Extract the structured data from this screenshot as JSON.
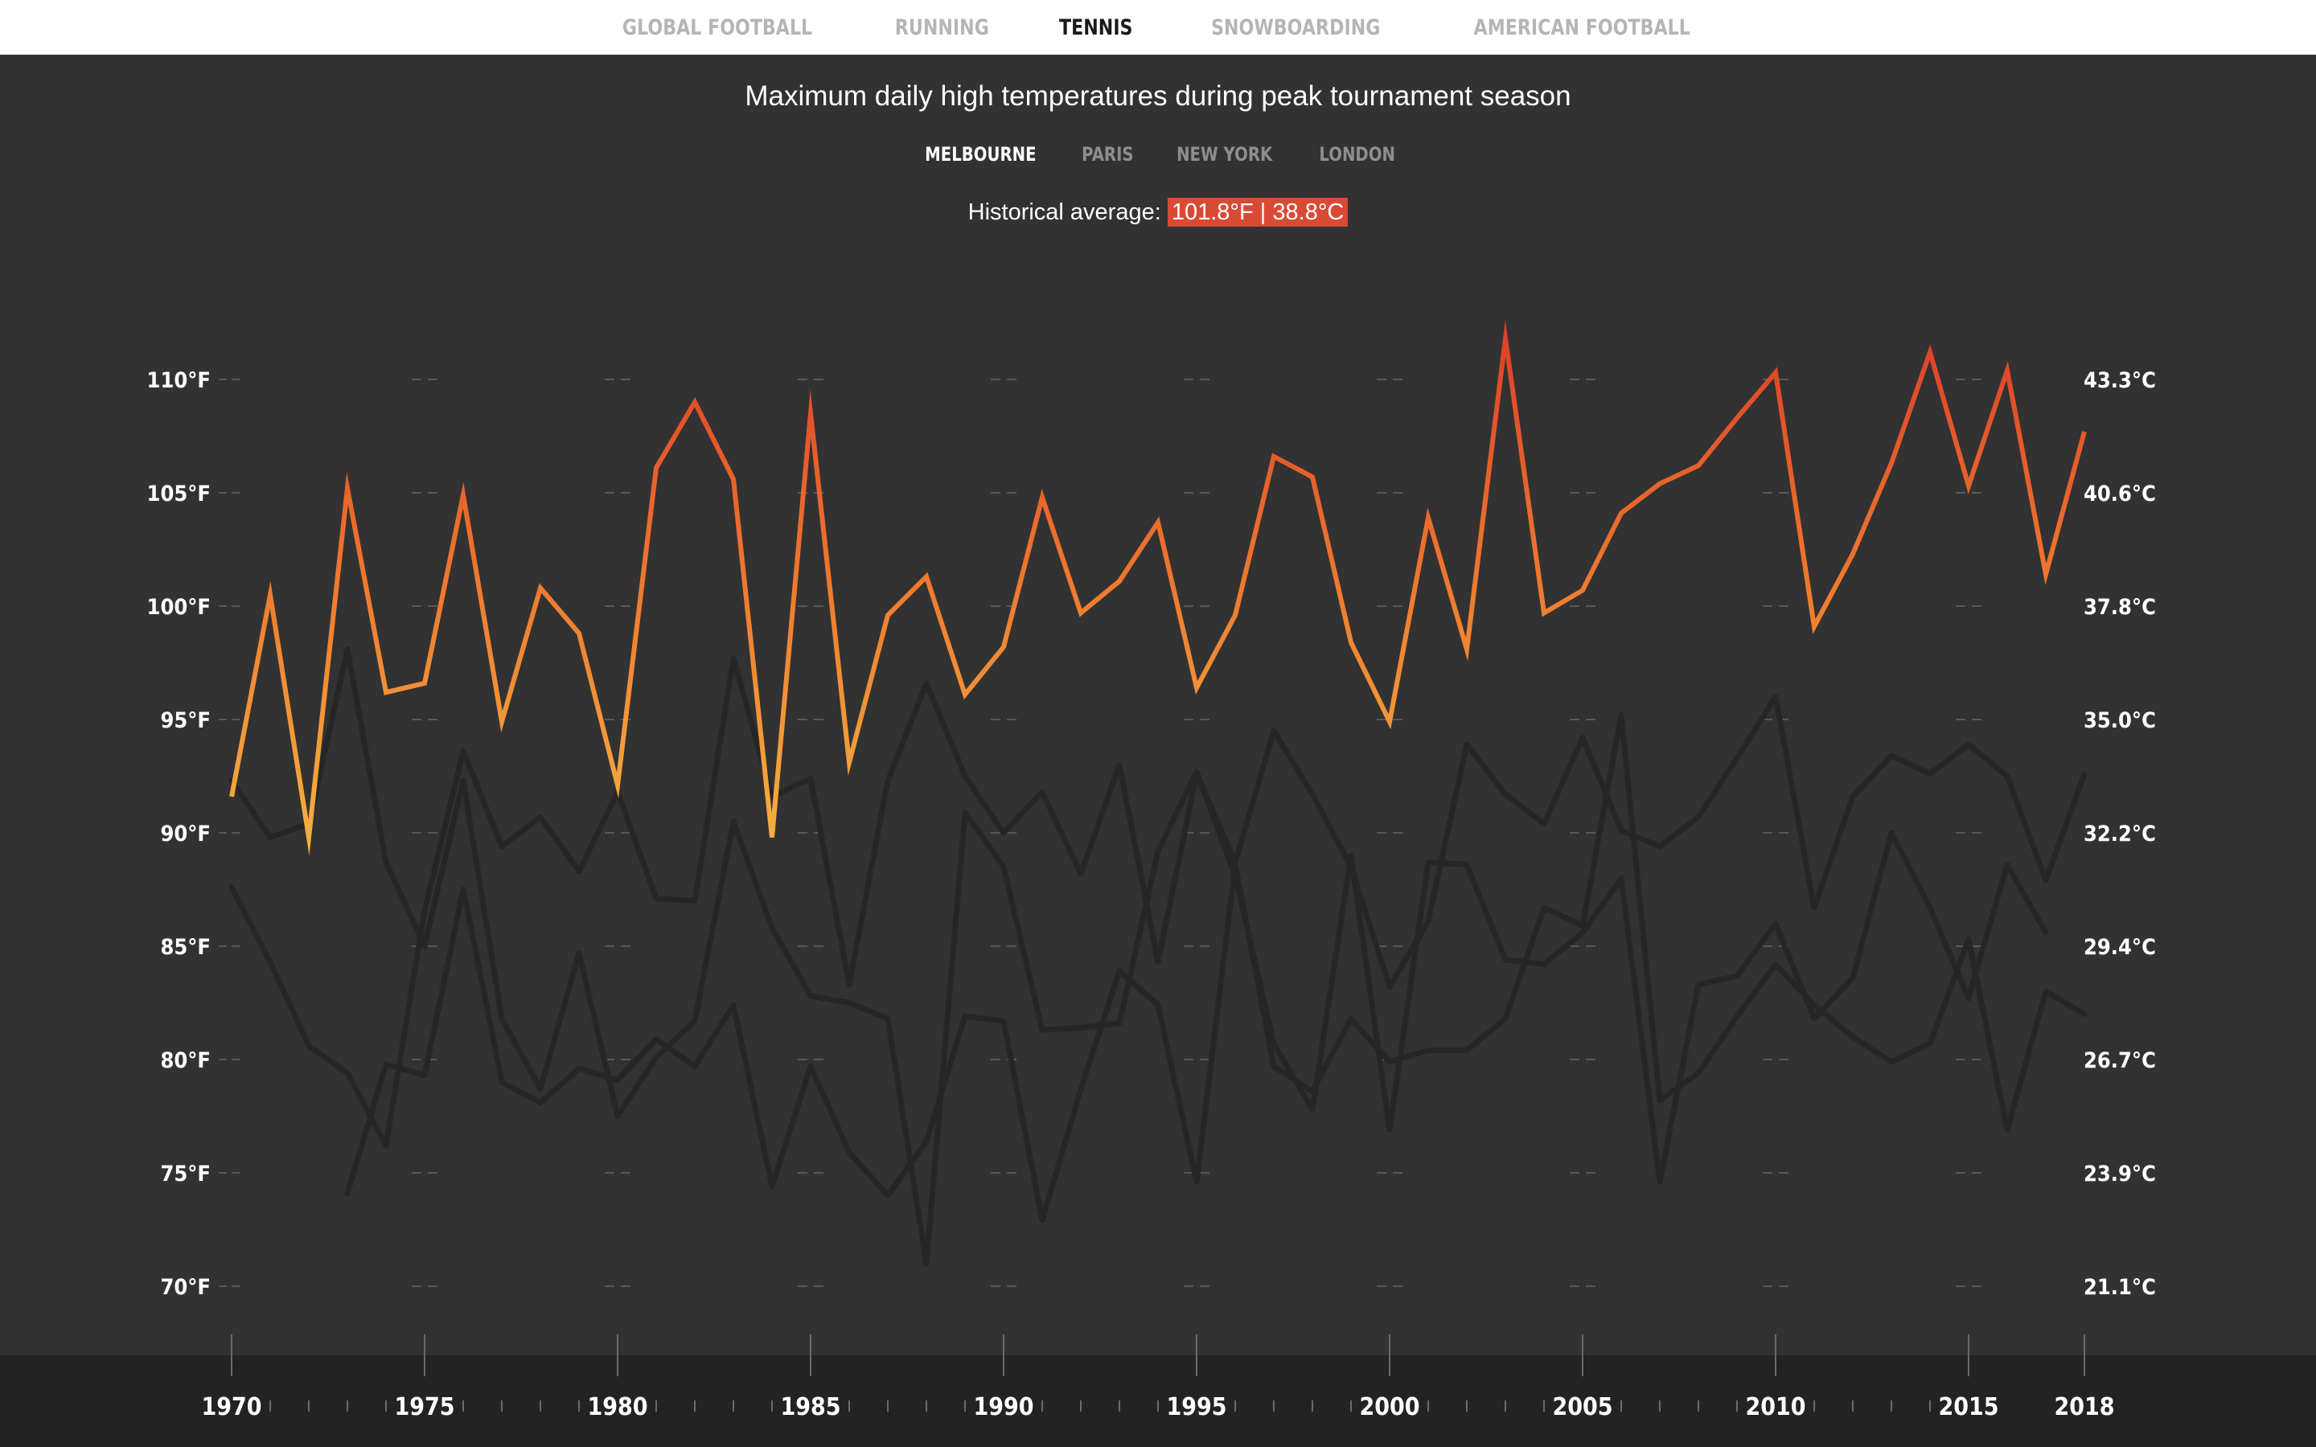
{
  "nav": {
    "tabs": [
      {
        "label": "GLOBAL FOOTBALL",
        "active": false
      },
      {
        "label": "RUNNING",
        "active": false
      },
      {
        "label": "TENNIS",
        "active": true
      },
      {
        "label": "SNOWBOARDING",
        "active": false
      },
      {
        "label": "AMERICAN FOOTBALL",
        "active": false
      }
    ]
  },
  "chart_title": "Maximum daily high temperatures during peak tournament season",
  "cities": [
    {
      "label": "MELBOURNE",
      "active": true
    },
    {
      "label": "PARIS",
      "active": false
    },
    {
      "label": "NEW YORK",
      "active": false
    },
    {
      "label": "LONDON",
      "active": false
    }
  ],
  "average": {
    "label": "Historical average:",
    "value": "101.8°F | 38.8°C"
  },
  "colors": {
    "highlight_low": "#f5b041",
    "highlight_mid": "#ef7b2f",
    "highlight_high": "#de4128",
    "background_series": "#262626",
    "badge": "#d94a35"
  },
  "chart_data": {
    "type": "line",
    "title": "Maximum daily high temperatures during peak tournament season",
    "xlabel": "",
    "ylabel": "",
    "xlim": [
      1970,
      2018
    ],
    "ylim": [
      67,
      115
    ],
    "y_ticks_f": [
      "110°F",
      "105°F",
      "100°F",
      "95°F",
      "90°F",
      "85°F",
      "80°F",
      "75°F",
      "70°F"
    ],
    "y_ticks_c": [
      "43.3°C",
      "40.6°C",
      "37.8°C",
      "35.0°C",
      "32.2°C",
      "29.4°C",
      "26.7°C",
      "23.9°C",
      "21.1°C"
    ],
    "y_tick_values": [
      110,
      105,
      100,
      95,
      90,
      85,
      80,
      75,
      70
    ],
    "x_tick_labels": [
      "1970",
      "1975",
      "1980",
      "1985",
      "1990",
      "1995",
      "2000",
      "2005",
      "2010",
      "2015",
      "2018"
    ],
    "x_tick_values": [
      1970,
      1975,
      1980,
      1985,
      1990,
      1995,
      2000,
      2005,
      2010,
      2015,
      2018
    ],
    "grid": "dashed horizontal",
    "highlight_series": "MELBOURNE",
    "series": [
      {
        "name": "MELBOURNE",
        "start_year": 1970,
        "values": [
          91.6,
          100.5,
          89.8,
          105.2,
          96.2,
          96.6,
          104.9,
          94.9,
          100.8,
          98.8,
          92.1,
          106.1,
          109.0,
          105.6,
          89.8,
          108.5,
          93.1,
          99.6,
          101.3,
          96.1,
          98.2,
          104.8,
          99.7,
          101.1,
          103.7,
          96.4,
          99.6,
          106.6,
          105.7,
          98.4,
          94.9,
          103.9,
          98.1,
          111.8,
          99.7,
          100.7,
          104.1,
          105.4,
          106.2,
          108.3,
          110.3,
          99.1,
          102.3,
          106.3,
          111.2,
          105.3,
          110.4,
          101.4,
          107.7
        ]
      },
      {
        "name": "PARIS",
        "start_year": 1970,
        "values": [
          87.6,
          84.3,
          80.6,
          79.4,
          76.2,
          86.6,
          93.6,
          89.4,
          90.7,
          88.3,
          91.8,
          87.1,
          87.0,
          97.7,
          91.6,
          92.4,
          83.3,
          92.3,
          96.6,
          92.5,
          90.0,
          91.8,
          88.2,
          93.0,
          84.3,
          92.6,
          88.7,
          94.5,
          91.7,
          88.5,
          83.2,
          86.1,
          93.9,
          91.7,
          90.4,
          94.2,
          90.1,
          89.4,
          90.7,
          93.3,
          96.0,
          86.7,
          91.6,
          93.4,
          92.6,
          93.9,
          92.5,
          87.9,
          92.6
        ]
      },
      {
        "name": "NEW YORK",
        "start_year": 1970,
        "values": [
          92.3,
          89.8,
          90.4,
          98.1,
          88.7,
          85.0,
          92.3,
          81.8,
          78.7,
          84.7,
          77.5,
          80.1,
          81.7,
          90.5,
          85.8,
          82.8,
          82.5,
          81.8,
          71.0,
          90.9,
          88.5,
          81.3,
          81.4,
          81.6,
          89.2,
          92.7,
          88.1,
          80.7,
          77.8,
          89.0,
          76.9,
          88.7,
          88.6,
          84.4,
          84.2,
          85.6,
          88.0,
          74.6,
          83.3,
          83.7,
          86.0,
          81.8,
          83.6,
          90.0,
          86.7,
          82.7,
          88.6,
          85.6
        ]
      },
      {
        "name": "LONDON",
        "start_year": 1973,
        "values": [
          74.1,
          79.8,
          79.3,
          87.5,
          79.0,
          78.1,
          79.6,
          79.1,
          80.9,
          79.7,
          82.4,
          74.4,
          79.7,
          75.9,
          74.0,
          76.4,
          81.9,
          81.7,
          72.9,
          78.7,
          83.9,
          82.4,
          74.6,
          88.6,
          79.7,
          78.6,
          81.8,
          79.9,
          80.4,
          80.4,
          81.8,
          86.7,
          85.9,
          95.2,
          78.2,
          79.4,
          81.9,
          84.2,
          82.4,
          81.0,
          79.9,
          80.7,
          85.3,
          76.9,
          83.0,
          82.0
        ]
      }
    ]
  }
}
